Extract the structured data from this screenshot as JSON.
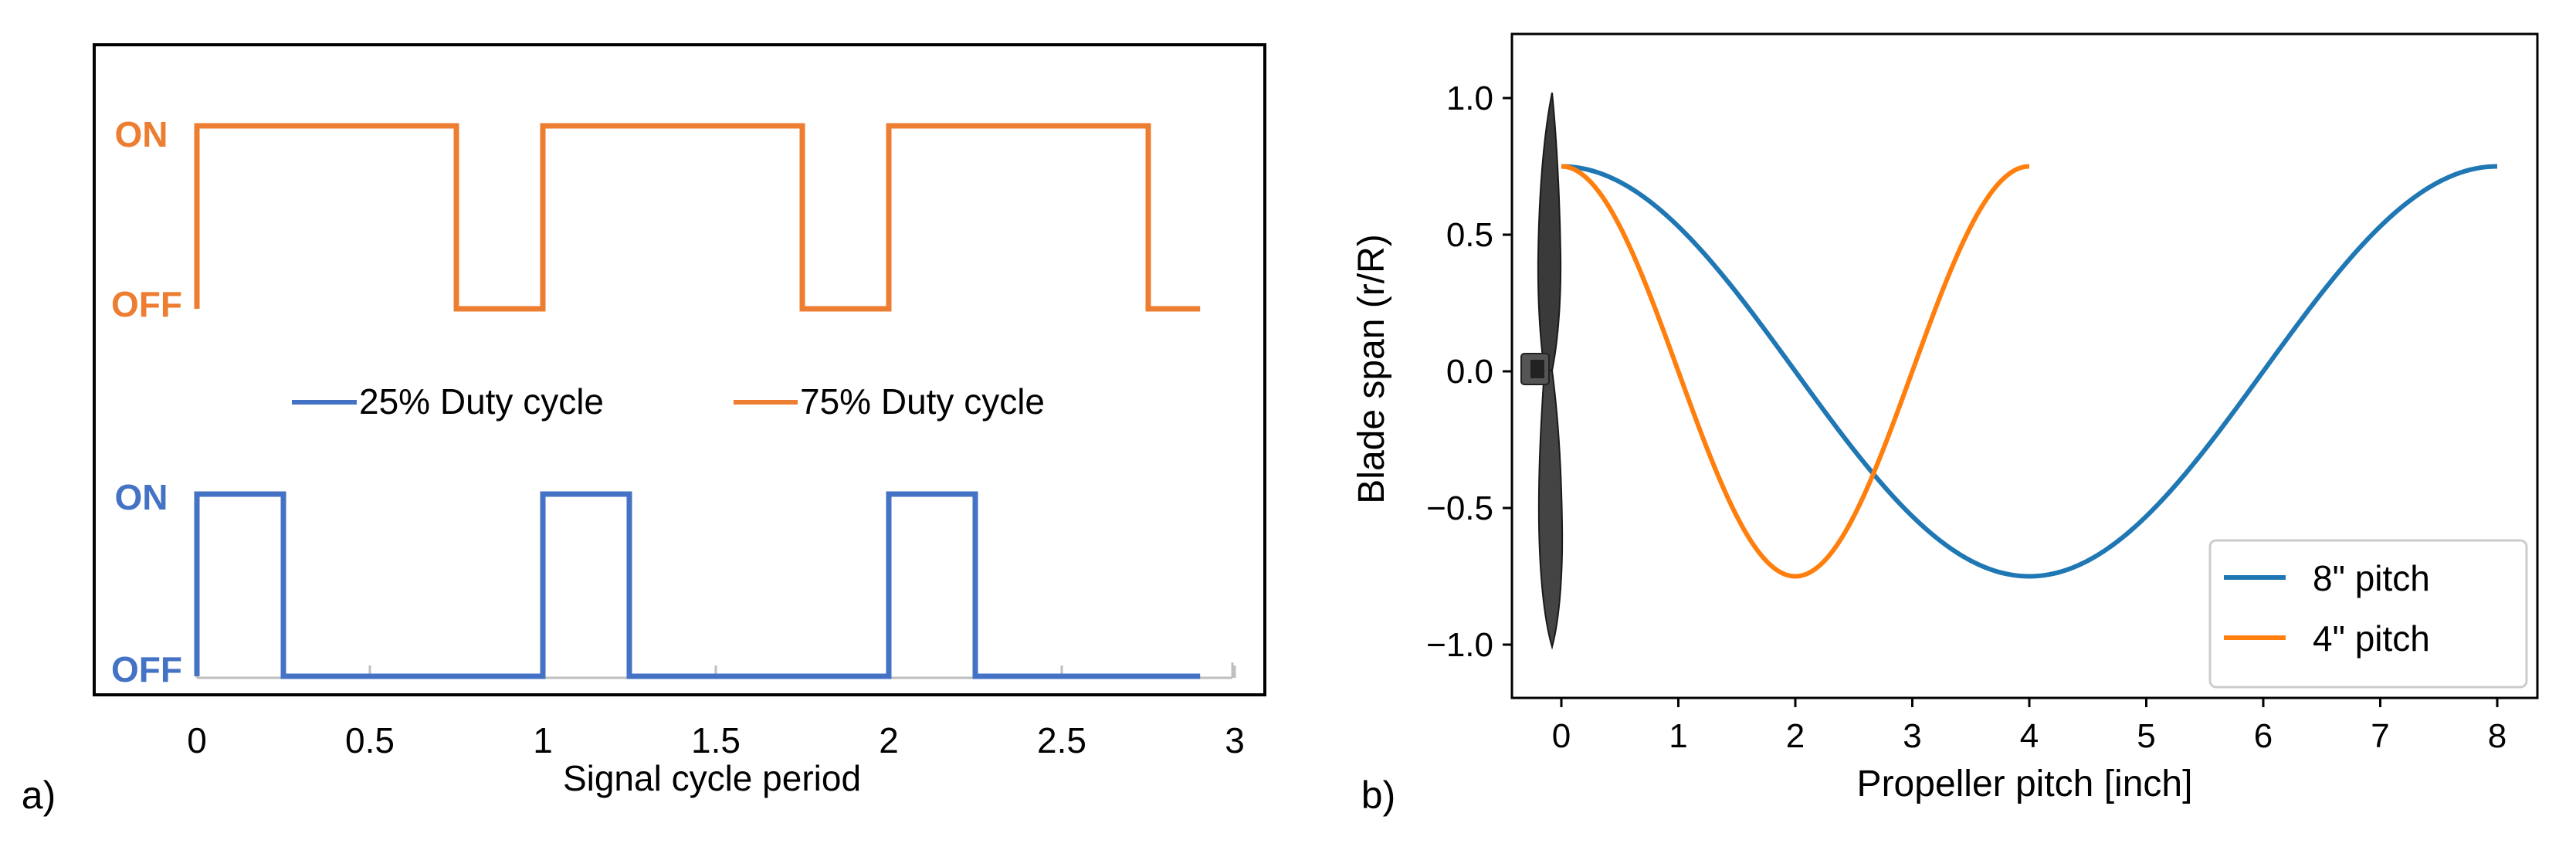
{
  "chart_data": [
    {
      "panel_label": "a)",
      "type": "line",
      "title": "",
      "xlabel": "Signal cycle period",
      "ylabel": "",
      "xlim": [
        -0.3,
        3.03
      ],
      "xticks": [
        0,
        0.5,
        1,
        1.5,
        2,
        2.5,
        3
      ],
      "xtick_labels": [
        "0",
        "0.5",
        "1",
        "1.5",
        "2",
        "2.5",
        "3"
      ],
      "legend_position": "center",
      "legend": [
        "25% Duty cycle",
        "75% Duty cycle"
      ],
      "state_labels": {
        "on": "ON",
        "off": "OFF"
      },
      "series": [
        {
          "name": "75% Duty cycle",
          "color": "#ED7D31",
          "kind": "square-wave",
          "duty": 0.75,
          "periods": [
            0,
            1,
            2
          ],
          "x_end": 2.9
        },
        {
          "name": "25% Duty cycle",
          "color": "#4472C4",
          "kind": "square-wave",
          "duty": 0.25,
          "periods": [
            0,
            1,
            2
          ],
          "x_end": 2.9
        }
      ]
    },
    {
      "panel_label": "b)",
      "type": "line",
      "title": "",
      "xlabel": "Propeller pitch [inch]",
      "ylabel": "Blade span (r/R)",
      "xlim": [
        -0.4,
        8.4
      ],
      "ylim": [
        -1.2,
        1.2
      ],
      "xticks": [
        0,
        1,
        2,
        3,
        4,
        5,
        6,
        7,
        8
      ],
      "xtick_labels": [
        "0",
        "1",
        "2",
        "3",
        "4",
        "5",
        "6",
        "7",
        "8"
      ],
      "yticks": [
        1.0,
        0.5,
        0.0,
        -0.5,
        -1.0
      ],
      "ytick_labels": [
        "1.0",
        "0.5",
        "0.0",
        "−0.5",
        "−1.0"
      ],
      "legend_position": "lower right",
      "series": [
        {
          "name": "8\" pitch",
          "color": "#1F77B4",
          "function": "0.75*cos(pi*x/4)",
          "x_range": [
            0,
            8
          ]
        },
        {
          "name": "4\" pitch",
          "color": "#FF7F0E",
          "function": "0.75*cos(pi*x/2)",
          "x_range": [
            0,
            4
          ]
        }
      ],
      "image_overlay": "propeller-blade"
    }
  ]
}
